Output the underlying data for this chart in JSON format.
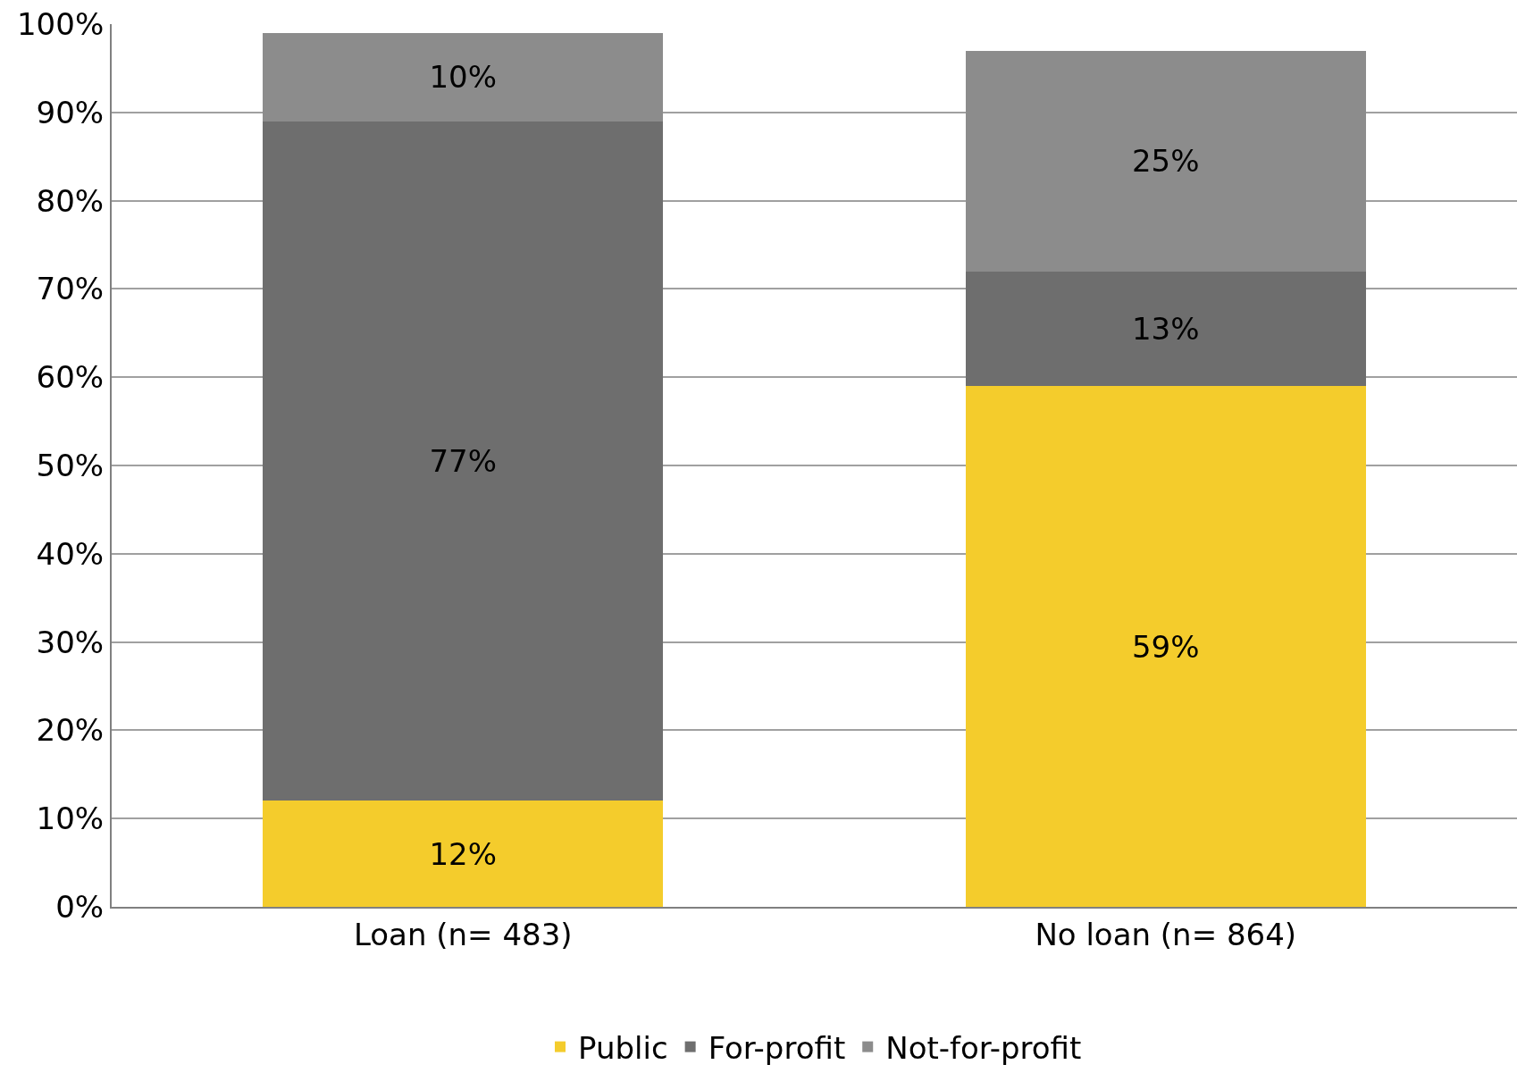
{
  "chart_data": {
    "type": "bar",
    "stacked": true,
    "categories": [
      "Loan (n= 483)",
      "No loan (n= 864)"
    ],
    "series": [
      {
        "name": "Public",
        "color": "#f4cc2c",
        "values": [
          12,
          59
        ],
        "value_labels": [
          "12%",
          "59%"
        ]
      },
      {
        "name": "For-profit",
        "color": "#6e6e6e",
        "values": [
          77,
          13
        ],
        "value_labels": [
          "77%",
          "13%"
        ]
      },
      {
        "name": "Not-for-profit",
        "color": "#8c8c8c",
        "values": [
          10,
          25
        ],
        "value_labels": [
          "10%",
          "25%"
        ]
      }
    ],
    "ylim": [
      0,
      100
    ],
    "yticks": [
      {
        "value": 0,
        "label": "0%"
      },
      {
        "value": 10,
        "label": "10%"
      },
      {
        "value": 20,
        "label": "20%"
      },
      {
        "value": 30,
        "label": "30%"
      },
      {
        "value": 40,
        "label": "40%"
      },
      {
        "value": 50,
        "label": "50%"
      },
      {
        "value": 60,
        "label": "60%"
      },
      {
        "value": 70,
        "label": "70%"
      },
      {
        "value": 80,
        "label": "80%"
      },
      {
        "value": 90,
        "label": "90%"
      },
      {
        "value": 100,
        "label": "100%"
      }
    ],
    "grid": "y",
    "legend": "bottom"
  }
}
